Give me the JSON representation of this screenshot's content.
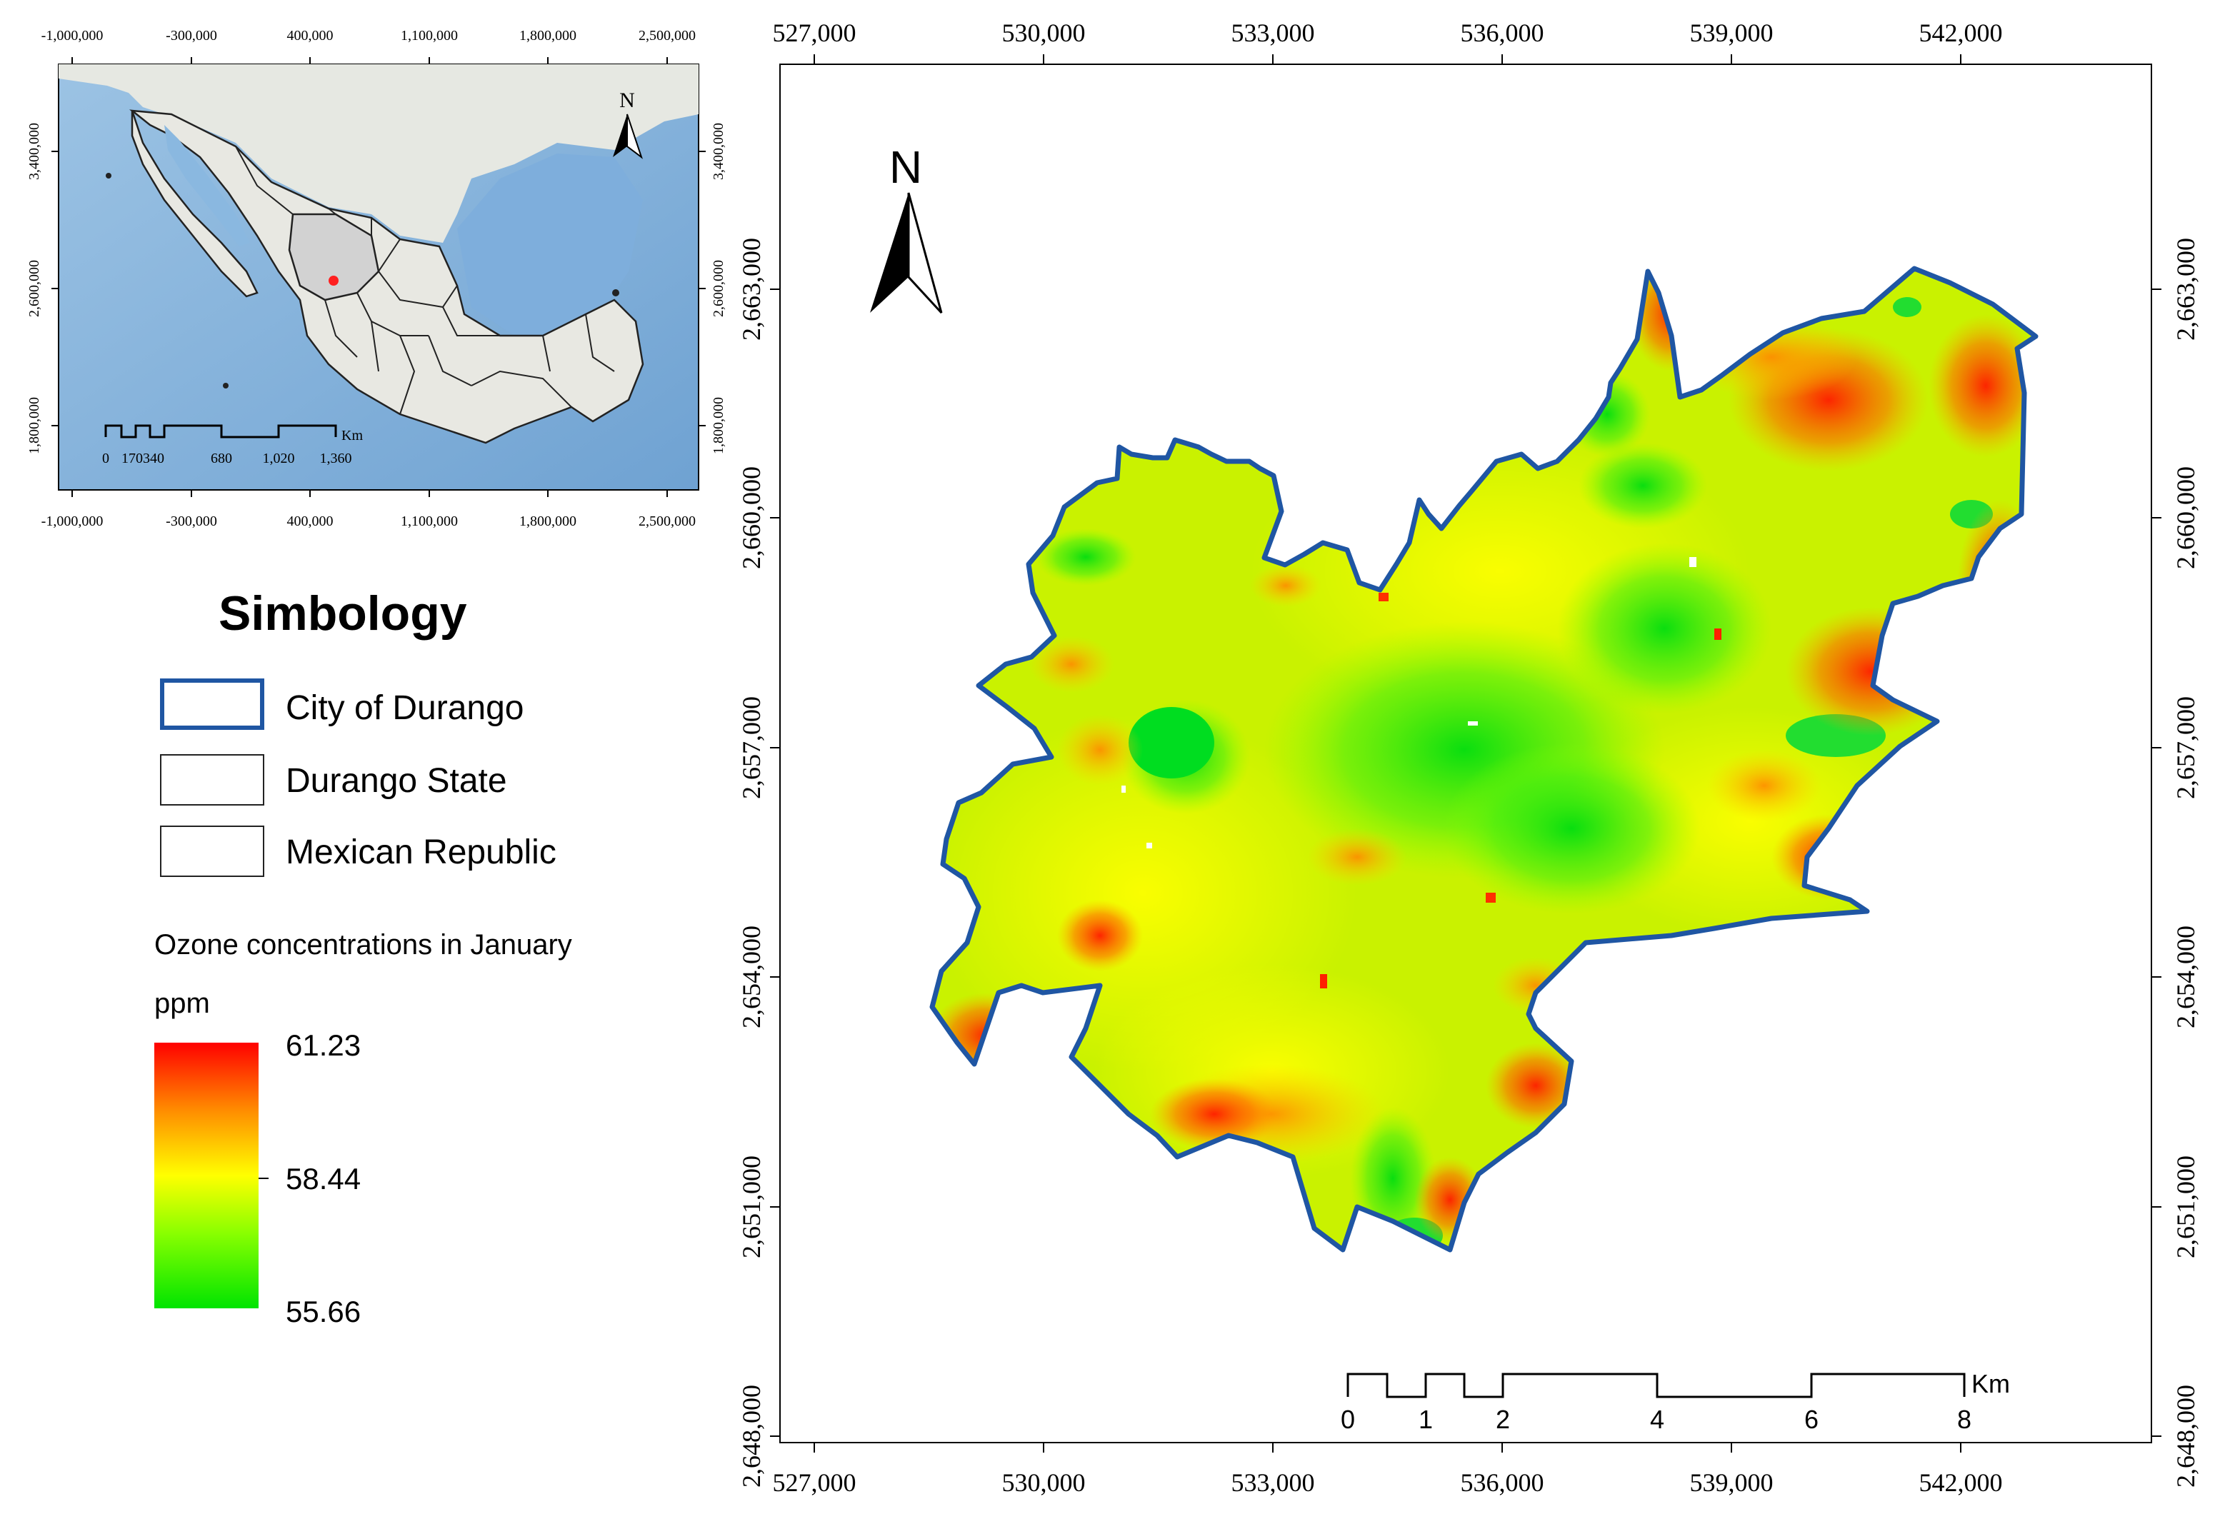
{
  "inset_map": {
    "x_ticks": [
      "-1,000,000",
      "-300,000",
      "400,000",
      "1,100,000",
      "1,800,000",
      "2,500,000"
    ],
    "y_ticks": [
      "3,400,000",
      "2,600,000",
      "1,800,000"
    ],
    "north_label": "N",
    "scale_labels": [
      "0",
      "170340",
      "680",
      "1,020",
      "1,360"
    ],
    "scale_unit": "Km"
  },
  "legend": {
    "title": "Simbology",
    "items": [
      {
        "label": "City of Durango",
        "style": "blue-outline",
        "color": "#1f56a3"
      },
      {
        "label": "Durango State",
        "style": "gray-outline",
        "color": "#222222"
      },
      {
        "label": "Mexican Republic",
        "style": "black-outline",
        "color": "#222222"
      }
    ],
    "ramp_title": "Ozone concentrations in January",
    "ramp_unit": "ppm",
    "ramp_max": "61.23",
    "ramp_mid": "58.44",
    "ramp_min": "55.66",
    "ramp_colors": [
      "#ff0000",
      "#ff8a00",
      "#ffff00",
      "#88ff00",
      "#00e400"
    ]
  },
  "main_map": {
    "x_ticks": [
      "527,000",
      "530,000",
      "533,000",
      "536,000",
      "539,000",
      "542,000"
    ],
    "y_ticks": [
      "2,663,000",
      "2,660,000",
      "2,657,000",
      "2,654,000",
      "2,651,000",
      "2,648,000"
    ],
    "north_label": "N",
    "scale_labels": [
      "0",
      "1",
      "2",
      "4",
      "6",
      "8"
    ],
    "scale_unit": "Km",
    "boundary_color": "#1f56a3"
  }
}
